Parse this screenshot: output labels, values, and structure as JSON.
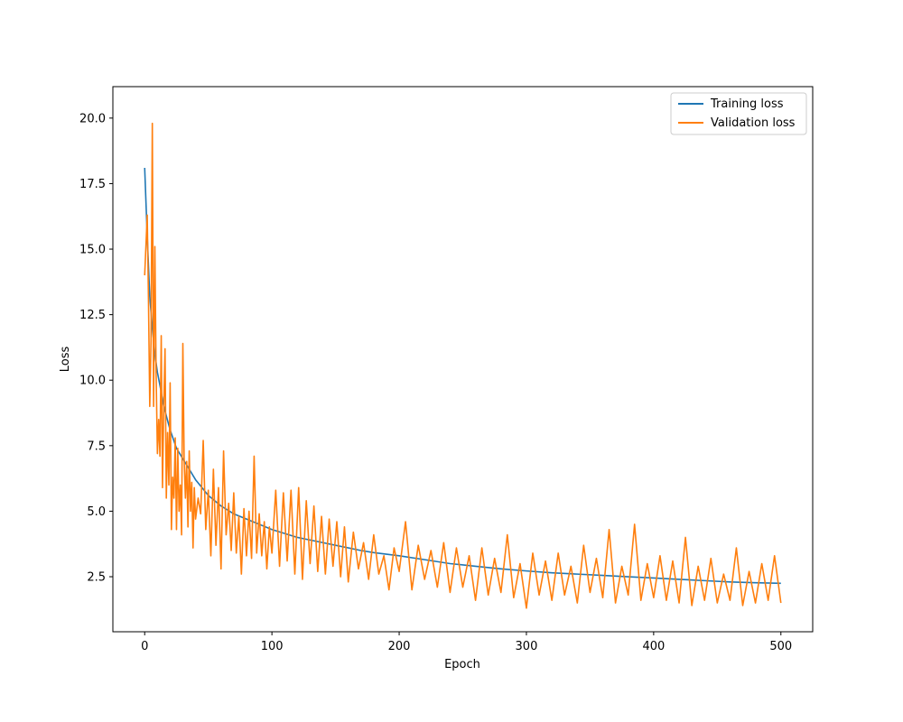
{
  "chart_data": {
    "type": "line",
    "title": "",
    "xlabel": "Epoch",
    "ylabel": "Loss",
    "xlim": [
      -25,
      525
    ],
    "ylim": [
      0.4,
      21.2
    ],
    "xticks": [
      0,
      100,
      200,
      300,
      400,
      500
    ],
    "xtick_labels": [
      "0",
      "100",
      "200",
      "300",
      "400",
      "500"
    ],
    "yticks": [
      2.5,
      5.0,
      7.5,
      10.0,
      12.5,
      15.0,
      17.5,
      20.0
    ],
    "ytick_labels": [
      "2.5",
      "5.0",
      "7.5",
      "10.0",
      "12.5",
      "15.0",
      "17.5",
      "20.0"
    ],
    "grid": false,
    "legend_position": "top-right",
    "series": [
      {
        "name": "Training loss",
        "color": "#1f77b4",
        "x": [
          0,
          2,
          4,
          6,
          8,
          10,
          12,
          15,
          20,
          25,
          30,
          35,
          40,
          45,
          50,
          60,
          70,
          80,
          90,
          100,
          110,
          120,
          130,
          140,
          150,
          160,
          170,
          180,
          190,
          200,
          220,
          240,
          260,
          280,
          300,
          320,
          340,
          360,
          380,
          400,
          420,
          440,
          460,
          480,
          500
        ],
        "values": [
          18.1,
          15.5,
          13.2,
          12.0,
          11.0,
          10.3,
          9.8,
          9.0,
          8.1,
          7.4,
          7.0,
          6.6,
          6.2,
          5.9,
          5.6,
          5.2,
          4.9,
          4.7,
          4.5,
          4.3,
          4.15,
          4.0,
          3.9,
          3.8,
          3.7,
          3.6,
          3.5,
          3.42,
          3.36,
          3.3,
          3.15,
          3.0,
          2.9,
          2.8,
          2.72,
          2.65,
          2.6,
          2.55,
          2.5,
          2.45,
          2.4,
          2.35,
          2.3,
          2.27,
          2.25
        ]
      },
      {
        "name": "Validation loss",
        "color": "#ff7f0e",
        "x": [
          0,
          2,
          3,
          4,
          5,
          6,
          7,
          8,
          9,
          10,
          11,
          12,
          13,
          14,
          15,
          16,
          17,
          18,
          19,
          20,
          21,
          22,
          23,
          24,
          25,
          26,
          27,
          28,
          29,
          30,
          31,
          32,
          33,
          34,
          35,
          36,
          37,
          38,
          39,
          40,
          42,
          44,
          46,
          48,
          50,
          52,
          54,
          56,
          58,
          60,
          62,
          64,
          66,
          68,
          70,
          72,
          74,
          76,
          78,
          80,
          82,
          84,
          86,
          88,
          90,
          92,
          94,
          96,
          98,
          100,
          103,
          106,
          109,
          112,
          115,
          118,
          121,
          124,
          127,
          130,
          133,
          136,
          139,
          142,
          145,
          148,
          151,
          154,
          157,
          160,
          164,
          168,
          172,
          176,
          180,
          184,
          188,
          192,
          196,
          200,
          205,
          210,
          215,
          220,
          225,
          230,
          235,
          240,
          245,
          250,
          255,
          260,
          265,
          270,
          275,
          280,
          285,
          290,
          295,
          300,
          305,
          310,
          315,
          320,
          325,
          330,
          335,
          340,
          345,
          350,
          355,
          360,
          365,
          370,
          375,
          380,
          385,
          390,
          395,
          400,
          405,
          410,
          415,
          420,
          425,
          430,
          435,
          440,
          445,
          450,
          455,
          460,
          465,
          470,
          475,
          480,
          485,
          490,
          495,
          500
        ],
        "values": [
          14.0,
          16.3,
          13.0,
          9.0,
          11.5,
          19.8,
          9.0,
          15.1,
          10.2,
          7.2,
          8.5,
          7.1,
          11.7,
          5.9,
          9.0,
          11.2,
          5.5,
          8.0,
          6.0,
          9.9,
          4.3,
          6.3,
          5.5,
          7.8,
          4.3,
          7.4,
          5.0,
          6.0,
          4.1,
          11.4,
          7.0,
          5.5,
          6.9,
          4.4,
          7.3,
          5.0,
          6.1,
          3.6,
          5.9,
          4.7,
          5.5,
          4.9,
          7.7,
          4.3,
          5.8,
          3.3,
          6.6,
          3.7,
          5.9,
          2.8,
          7.3,
          4.1,
          5.3,
          3.5,
          5.7,
          3.4,
          4.8,
          2.6,
          5.1,
          3.3,
          5.0,
          3.2,
          7.1,
          3.4,
          4.9,
          3.3,
          4.6,
          2.8,
          4.4,
          3.4,
          5.8,
          2.9,
          5.7,
          3.1,
          5.8,
          2.6,
          5.9,
          2.4,
          5.4,
          3.0,
          5.2,
          2.7,
          4.8,
          2.6,
          4.7,
          2.9,
          4.6,
          2.5,
          4.4,
          2.3,
          4.2,
          2.8,
          3.8,
          2.4,
          4.1,
          2.6,
          3.3,
          2.0,
          3.6,
          2.7,
          4.6,
          2.0,
          3.7,
          2.4,
          3.5,
          2.1,
          3.8,
          1.9,
          3.6,
          2.1,
          3.3,
          1.6,
          3.6,
          1.8,
          3.2,
          1.9,
          4.1,
          1.7,
          3.0,
          1.3,
          3.4,
          1.8,
          3.1,
          1.6,
          3.4,
          1.8,
          2.9,
          1.5,
          3.7,
          1.9,
          3.2,
          1.7,
          4.3,
          1.5,
          2.9,
          1.8,
          4.5,
          1.6,
          3.0,
          1.7,
          3.3,
          1.6,
          3.1,
          1.5,
          4.0,
          1.4,
          2.9,
          1.6,
          3.2,
          1.5,
          2.6,
          1.6,
          3.6,
          1.4,
          2.7,
          1.5,
          3.0,
          1.6,
          3.3,
          1.5
        ]
      }
    ]
  }
}
